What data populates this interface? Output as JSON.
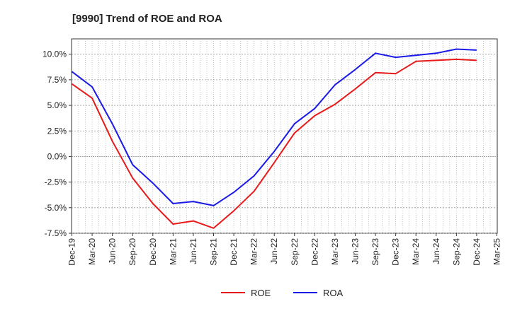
{
  "chart_data": {
    "type": "line",
    "title": "[9990]  Trend of ROE and ROA",
    "xlabel": "",
    "ylabel": "",
    "x": [
      "Dec-19",
      "Mar-20",
      "Jun-20",
      "Sep-20",
      "Dec-20",
      "Mar-21",
      "Jun-21",
      "Sep-21",
      "Dec-21",
      "Mar-22",
      "Jun-22",
      "Sep-22",
      "Dec-22",
      "Mar-23",
      "Jun-23",
      "Sep-23",
      "Dec-23",
      "Mar-24",
      "Jun-24",
      "Sep-24",
      "Dec-24",
      "Mar-25"
    ],
    "y_ticks": [
      "10.0%",
      "7.5%",
      "5.0%",
      "2.5%",
      "0.0%",
      "-2.5%",
      "-5.0%",
      "-7.5%"
    ],
    "y_tick_values": [
      10,
      7.5,
      5,
      2.5,
      0,
      -2.5,
      -5,
      -7.5
    ],
    "ylim": [
      -7.5,
      11.5
    ],
    "grid": true,
    "legend_position": "bottom",
    "series": [
      {
        "name": "ROE",
        "color": "#e8191a",
        "values": [
          7.1,
          5.7,
          1.5,
          -2.1,
          -4.6,
          -6.6,
          -6.3,
          -7.0,
          -5.3,
          -3.4,
          -0.6,
          2.3,
          4.0,
          5.1,
          6.6,
          8.2,
          8.1,
          9.3,
          9.4,
          9.5,
          9.4,
          null
        ]
      },
      {
        "name": "ROA",
        "color": "#1a1ae8",
        "values": [
          8.3,
          6.8,
          3.2,
          -0.8,
          -2.6,
          -4.6,
          -4.4,
          -4.8,
          -3.5,
          -1.9,
          0.5,
          3.2,
          4.7,
          7.0,
          8.5,
          10.1,
          9.7,
          9.9,
          10.1,
          10.5,
          10.4,
          null
        ]
      }
    ]
  }
}
